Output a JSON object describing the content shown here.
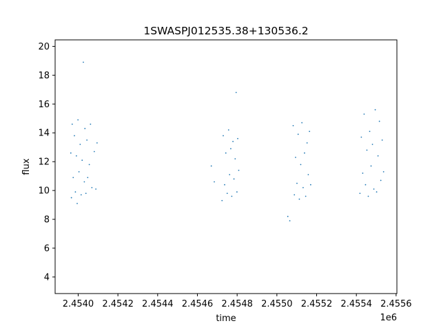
{
  "chart_data": {
    "type": "scatter",
    "title": "1SWASPJ012535.38+130536.2",
    "xlabel": "time",
    "ylabel": "flux",
    "x_offset_label": "1e6",
    "xlim": [
      2453884,
      2455604
    ],
    "ylim": [
      2.85,
      20.45
    ],
    "x_ticks": [
      2.454,
      2.4542,
      2.4544,
      2.4546,
      2.4548,
      2.455,
      2.4552,
      2.4554,
      2.4556
    ],
    "x_tick_labels": [
      "2.4540",
      "2.4542",
      "2.4544",
      "2.4546",
      "2.4548",
      "2.4550",
      "2.4552",
      "2.4554",
      "2.4556"
    ],
    "y_ticks": [
      4,
      6,
      8,
      10,
      12,
      14,
      16,
      18,
      20
    ],
    "y_tick_labels": [
      "4",
      "6",
      "8",
      "10",
      "12",
      "14",
      "16",
      "18",
      "20"
    ],
    "grid": false,
    "marker_color": "#1f77b4",
    "series": [
      {
        "x": [
          2453963,
          2453966,
          2453970,
          2453975,
          2453981,
          2453986,
          2453991,
          2453995,
          2453999,
          2454004,
          2454010,
          2454015,
          2454020,
          2454026,
          2454031,
          2454034,
          2454039,
          2454044,
          2454048,
          2454056,
          2454062,
          2454069,
          2454081,
          2454089,
          2454095
        ],
        "y": [
          12.6,
          9.5,
          14.6,
          10.9,
          13.8,
          9.9,
          12.4,
          9.1,
          14.9,
          11.3,
          13.2,
          9.7,
          12.1,
          18.9,
          10.6,
          14.3,
          9.8,
          13.5,
          10.9,
          11.8,
          14.6,
          10.2,
          12.7,
          10.1,
          13.3
        ]
      },
      {
        "x": [
          2454670,
          2454685,
          2454724,
          2454730,
          2454737,
          2454743,
          2454750,
          2454757,
          2454762,
          2454768,
          2454773,
          2454779,
          2454784,
          2454790,
          2454795,
          2454799,
          2454803,
          2454808
        ],
        "y": [
          11.7,
          10.6,
          9.3,
          13.8,
          10.4,
          12.6,
          9.8,
          14.2,
          11.1,
          12.9,
          9.6,
          13.4,
          10.8,
          12.2,
          16.8,
          9.9,
          13.6,
          11.4
        ]
      },
      {
        "x": [
          2455055,
          2455065,
          2455082,
          2455088,
          2455094,
          2455101,
          2455107,
          2455113,
          2455120,
          2455126,
          2455132,
          2455139,
          2455145,
          2455152,
          2455158,
          2455164,
          2455170
        ],
        "y": [
          8.2,
          7.9,
          14.5,
          9.7,
          12.3,
          10.5,
          13.9,
          9.4,
          11.8,
          14.7,
          10.2,
          12.6,
          9.6,
          13.3,
          11.1,
          14.1,
          10.4
        ]
      },
      {
        "x": [
          2455418,
          2455425,
          2455432,
          2455439,
          2455446,
          2455453,
          2455460,
          2455467,
          2455474,
          2455481,
          2455488,
          2455495,
          2455502,
          2455509,
          2455516,
          2455523,
          2455530,
          2455537
        ],
        "y": [
          9.8,
          13.7,
          11.2,
          15.3,
          10.4,
          12.8,
          9.6,
          14.1,
          11.7,
          13.2,
          10.1,
          15.6,
          9.9,
          12.4,
          14.8,
          10.7,
          13.5,
          11.3
        ]
      }
    ]
  }
}
